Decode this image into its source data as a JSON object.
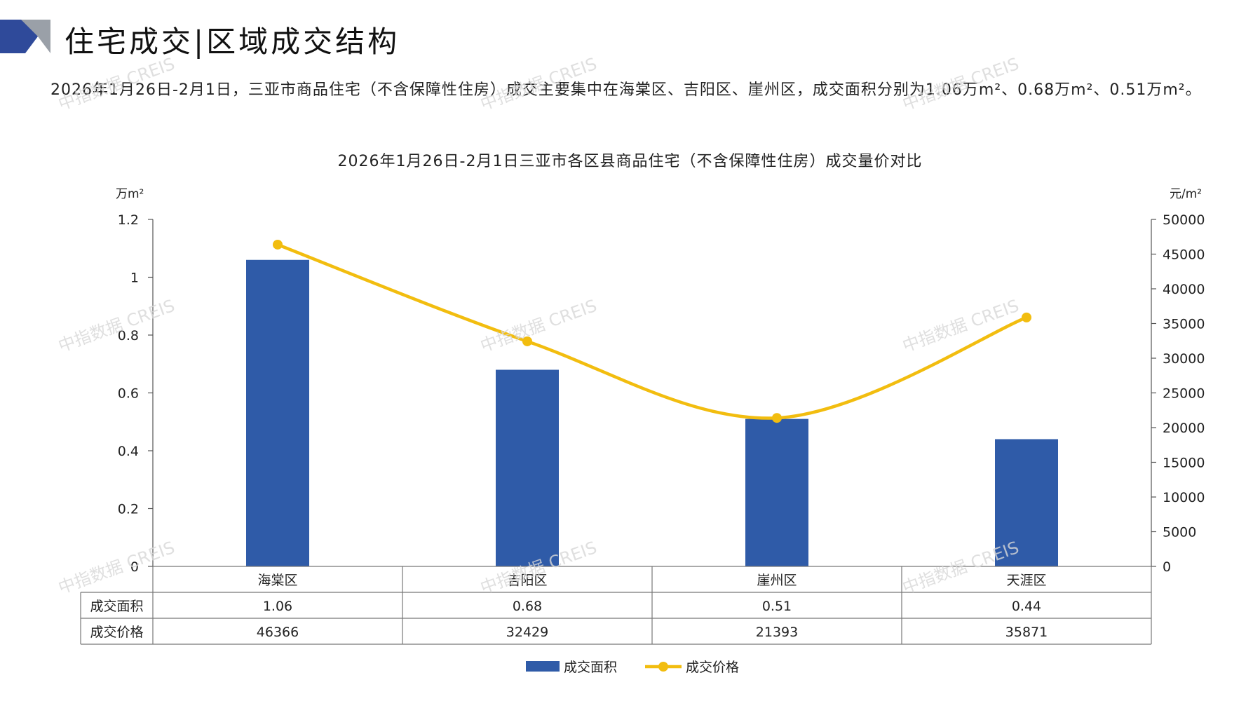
{
  "header": {
    "title": "住宅成交|区域成交结构",
    "summary": "2026年1月26日-2月1日，三亚市商品住宅（不含保障性住房）成交主要集中在海棠区、吉阳区、崖州区，成交面积分别为1.06万m²、0.68万m²、0.51万m²。"
  },
  "watermark": "中指数据 CREIS",
  "colors": {
    "bar": "#2f5ba8",
    "line": "#f2bd0f",
    "accent_dark": "#2f4a9a",
    "accent_grey": "#9aa0a8"
  },
  "chart_data": {
    "type": "bar",
    "title": "2026年1月26日-2月1日三亚市各区县商品住宅（不含保障性住房）成交量价对比",
    "categories": [
      "海棠区",
      "吉阳区",
      "崖州区",
      "天涯区"
    ],
    "series": [
      {
        "name": "成交面积",
        "type": "bar",
        "axis": "left",
        "values": [
          1.06,
          0.68,
          0.51,
          0.44
        ]
      },
      {
        "name": "成交价格",
        "type": "line",
        "axis": "right",
        "values": [
          46366,
          32429,
          21393,
          35871
        ]
      }
    ],
    "y_left": {
      "unit": "万m²",
      "ylim": [
        0,
        1.2
      ],
      "ticks": [
        "0",
        "0.2",
        "0.4",
        "0.6",
        "0.8",
        "1",
        "1.2"
      ]
    },
    "y_right": {
      "unit": "元/m²",
      "ylim": [
        0,
        50000
      ],
      "ticks": [
        "0",
        "5000",
        "10000",
        "15000",
        "20000",
        "25000",
        "30000",
        "35000",
        "40000",
        "45000",
        "50000"
      ]
    },
    "table": {
      "rows": [
        {
          "label": "成交面积",
          "cells": [
            "1.06",
            "0.68",
            "0.51",
            "0.44"
          ]
        },
        {
          "label": "成交价格",
          "cells": [
            "46366",
            "32429",
            "21393",
            "35871"
          ]
        }
      ]
    },
    "legend": [
      "成交面积",
      "成交价格"
    ],
    "legend_position": "bottom"
  }
}
